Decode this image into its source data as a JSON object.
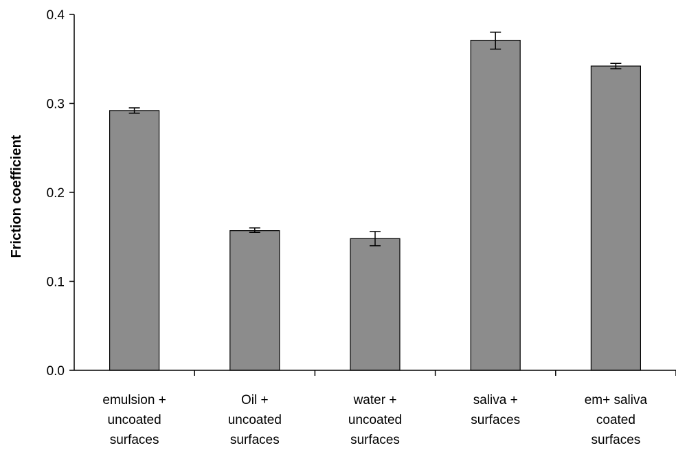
{
  "chart_data": {
    "type": "bar",
    "categories": [
      [
        "emulsion +",
        "uncoated",
        "surfaces"
      ],
      [
        "Oil  +",
        "uncoated",
        "surfaces"
      ],
      [
        "water  +",
        "uncoated",
        "surfaces"
      ],
      [
        "saliva +",
        "surfaces"
      ],
      [
        "em+ saliva",
        "coated",
        "surfaces"
      ]
    ],
    "values": [
      0.292,
      0.157,
      0.148,
      0.371,
      0.342
    ],
    "error_low": [
      0.289,
      0.155,
      0.14,
      0.361,
      0.339
    ],
    "error_high": [
      0.295,
      0.16,
      0.156,
      0.38,
      0.345
    ],
    "title": "",
    "xlabel": "",
    "ylabel": "Friction coefficient",
    "ylim": [
      0,
      0.4
    ],
    "yticks": [
      0,
      0.1,
      0.2,
      0.3,
      0.4
    ],
    "ytick_labels": [
      "0.0",
      "0.1",
      "0.2",
      "0.3",
      "0.4"
    ],
    "grid": false,
    "legend": "none",
    "bar_color": "#8c8c8c"
  }
}
